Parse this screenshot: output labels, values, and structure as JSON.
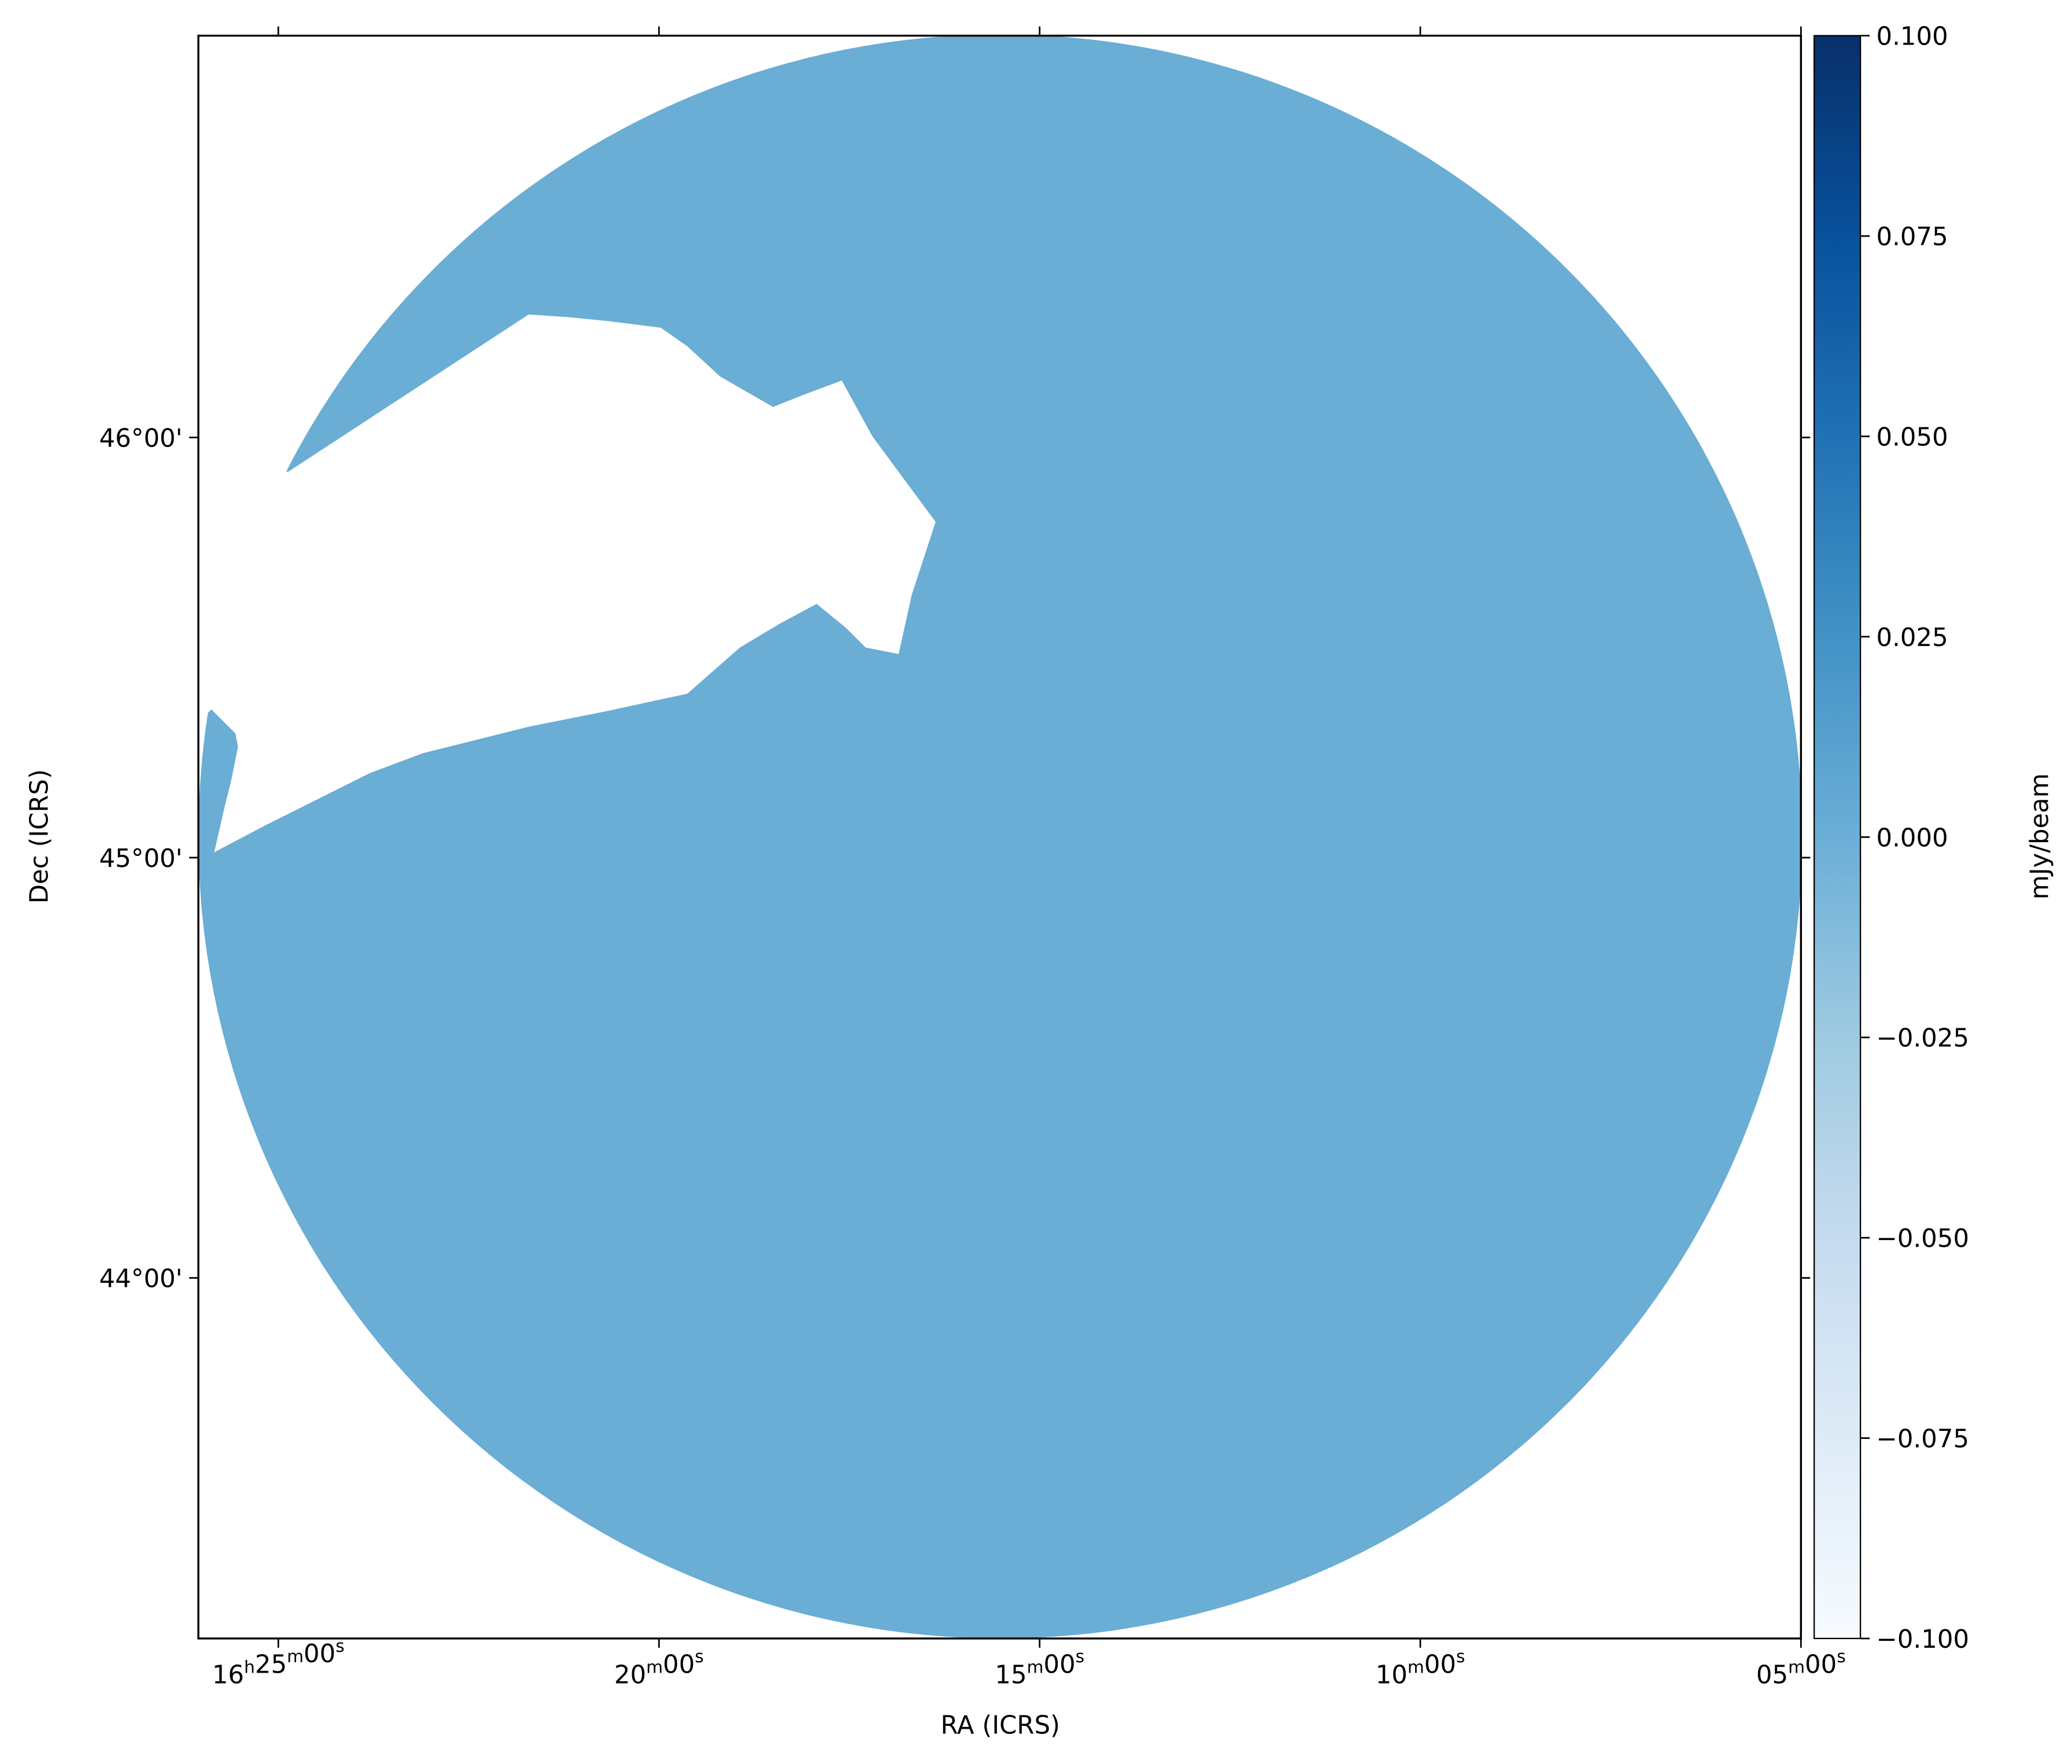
{
  "chart_data": {
    "type": "image",
    "x_label": "RA (ICRS)",
    "y_label": "Dec (ICRS)",
    "colorbar_label": "mJy/beam",
    "xlim": [
      26.05,
      5
    ],
    "xticks": [
      {
        "value": 25,
        "label": "16h25m00s"
      },
      {
        "value": 20,
        "label": "20m00s"
      },
      {
        "value": 15,
        "label": "15m00s"
      },
      {
        "value": 10,
        "label": "10m00s"
      },
      {
        "value": 5,
        "label": "05m00s"
      }
    ],
    "ylim": [
      43.142,
      46.956
    ],
    "yticks": [
      {
        "value": 44,
        "label": "44°00'"
      },
      {
        "value": 45,
        "label": "45°00'"
      },
      {
        "value": 46,
        "label": "46°00'"
      }
    ],
    "clim": [
      -0.1,
      0.1
    ],
    "cticks": [
      {
        "value": -0.1,
        "label": "−0.100"
      },
      {
        "value": -0.075,
        "label": "−0.075"
      },
      {
        "value": -0.05,
        "label": "−0.050"
      },
      {
        "value": -0.025,
        "label": "−0.025"
      },
      {
        "value": 0,
        "label": "0.000"
      },
      {
        "value": 0.025,
        "label": "0.025"
      },
      {
        "value": 0.05,
        "label": "0.050"
      },
      {
        "value": 0.075,
        "label": "0.075"
      },
      {
        "value": 0.1,
        "label": "0.100"
      }
    ],
    "cmap_colors": [
      "#f7fbff",
      "#deebf7",
      "#c6dbef",
      "#9ecae1",
      "#6baed6",
      "#4292c6",
      "#2171b5",
      "#08519c",
      "#08306b"
    ],
    "image_color": "#6aadd5"
  }
}
